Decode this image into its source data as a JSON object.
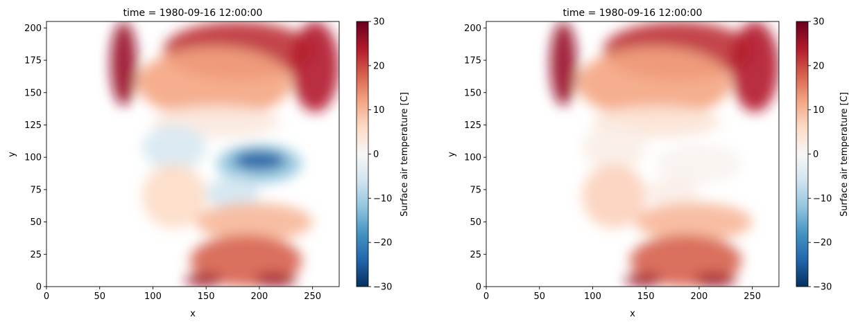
{
  "chart_data": [
    {
      "type": "heatmap",
      "title": "time = 1980-09-16 12:00:00",
      "xlabel": "x",
      "ylabel": "y",
      "xlim": [
        0,
        275
      ],
      "ylim": [
        0,
        205
      ],
      "xticks": [
        0,
        50,
        100,
        150,
        200,
        250
      ],
      "yticks": [
        0,
        25,
        50,
        75,
        100,
        125,
        150,
        175,
        200
      ],
      "colorbar": {
        "label": "Surface air temperature [C]",
        "range": [
          -30,
          30
        ],
        "ticks": [
          30,
          20,
          10,
          0,
          -10,
          -20,
          -30
        ],
        "colormap": "RdBu_r"
      },
      "regions": [
        {
          "value": 22,
          "x": [
            110,
            250
          ],
          "y": [
            160,
            205
          ]
        },
        {
          "value": 26,
          "x": [
            60,
            85
          ],
          "y": [
            140,
            205
          ]
        },
        {
          "value": 24,
          "x": [
            230,
            275
          ],
          "y": [
            135,
            205
          ]
        },
        {
          "value": 12,
          "x": [
            85,
            230
          ],
          "y": [
            130,
            185
          ]
        },
        {
          "value": 3,
          "x": [
            100,
            220
          ],
          "y": [
            115,
            140
          ]
        },
        {
          "value": -5,
          "x": [
            90,
            150
          ],
          "y": [
            90,
            125
          ]
        },
        {
          "value": -12,
          "x": [
            160,
            240
          ],
          "y": [
            80,
            110
          ]
        },
        {
          "value": -25,
          "x": [
            175,
            225
          ],
          "y": [
            90,
            105
          ]
        },
        {
          "value": -6,
          "x": [
            150,
            200
          ],
          "y": [
            60,
            85
          ]
        },
        {
          "value": 6,
          "x": [
            90,
            150
          ],
          "y": [
            45,
            95
          ]
        },
        {
          "value": 10,
          "x": [
            140,
            250
          ],
          "y": [
            35,
            65
          ]
        },
        {
          "value": 18,
          "x": [
            135,
            240
          ],
          "y": [
            0,
            40
          ]
        },
        {
          "value": 26,
          "x": [
            130,
            165
          ],
          "y": [
            0,
            10
          ]
        },
        {
          "value": 26,
          "x": [
            195,
            235
          ],
          "y": [
            0,
            10
          ]
        }
      ]
    },
    {
      "type": "heatmap",
      "title": "time = 1980-09-16 12:00:00",
      "xlabel": "x",
      "ylabel": "y",
      "xlim": [
        0,
        275
      ],
      "ylim": [
        0,
        205
      ],
      "xticks": [
        0,
        50,
        100,
        150,
        200,
        250
      ],
      "yticks": [
        0,
        25,
        50,
        75,
        100,
        125,
        150,
        175,
        200
      ],
      "colorbar": {
        "label": "Surface air temperature [C]",
        "range": [
          -30,
          30
        ],
        "ticks": [
          30,
          20,
          10,
          0,
          -10,
          -20,
          -30
        ],
        "colormap": "RdBu_r"
      },
      "regions": [
        {
          "value": 22,
          "x": [
            110,
            250
          ],
          "y": [
            160,
            205
          ]
        },
        {
          "value": 26,
          "x": [
            60,
            85
          ],
          "y": [
            140,
            205
          ]
        },
        {
          "value": 24,
          "x": [
            230,
            275
          ],
          "y": [
            135,
            205
          ]
        },
        {
          "value": 12,
          "x": [
            85,
            230
          ],
          "y": [
            130,
            185
          ]
        },
        {
          "value": 4,
          "x": [
            100,
            220
          ],
          "y": [
            115,
            140
          ]
        },
        {
          "value": 2,
          "x": [
            90,
            150
          ],
          "y": [
            90,
            125
          ]
        },
        {
          "value": 1,
          "x": [
            160,
            240
          ],
          "y": [
            80,
            110
          ]
        },
        {
          "value": 2,
          "x": [
            150,
            200
          ],
          "y": [
            60,
            85
          ]
        },
        {
          "value": 7,
          "x": [
            90,
            150
          ],
          "y": [
            45,
            95
          ]
        },
        {
          "value": 10,
          "x": [
            140,
            250
          ],
          "y": [
            35,
            65
          ]
        },
        {
          "value": 18,
          "x": [
            135,
            240
          ],
          "y": [
            0,
            40
          ]
        },
        {
          "value": 26,
          "x": [
            130,
            165
          ],
          "y": [
            0,
            10
          ]
        },
        {
          "value": 26,
          "x": [
            195,
            235
          ],
          "y": [
            0,
            10
          ]
        }
      ]
    }
  ]
}
